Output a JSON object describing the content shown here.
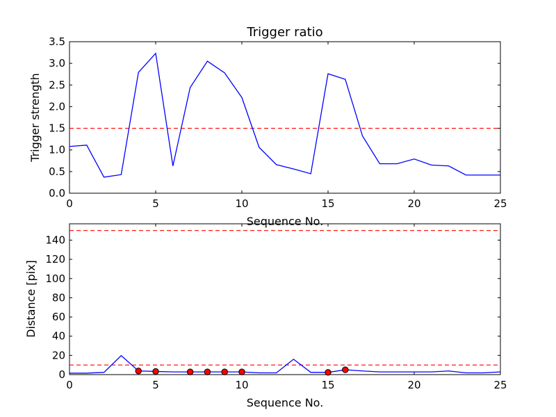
{
  "chart_data": [
    {
      "type": "line",
      "title": "Trigger ratio",
      "xlabel": "Sequence No.",
      "ylabel": "Trigger strength",
      "xlim": [
        0,
        25
      ],
      "ylim": [
        0,
        3.5
      ],
      "xticks": [
        "0",
        "5",
        "10",
        "15",
        "20",
        "25"
      ],
      "yticks": [
        "0.0",
        "0.5",
        "1.0",
        "1.5",
        "2.0",
        "2.5",
        "3.0",
        "3.5"
      ],
      "grid": false,
      "series": [
        {
          "color": "#0000ff",
          "x": [
            0,
            1,
            2,
            3,
            4,
            5,
            6,
            7,
            8,
            9,
            10,
            11,
            12,
            13,
            14,
            15,
            16,
            17,
            18,
            19,
            20,
            21,
            22,
            23,
            24,
            25
          ],
          "values": [
            1.08,
            1.11,
            0.37,
            0.43,
            2.79,
            3.23,
            0.63,
            2.44,
            3.05,
            2.78,
            2.21,
            1.06,
            0.66,
            0.56,
            0.45,
            2.76,
            2.63,
            1.32,
            0.68,
            0.68,
            0.79,
            0.65,
            0.63,
            0.42,
            0.42,
            0.42
          ]
        }
      ],
      "threshold_lines": [
        {
          "y": 1.5,
          "color": "#ff0000",
          "style": "dashed"
        }
      ]
    },
    {
      "type": "line",
      "title": "",
      "xlabel": "Sequence No.",
      "ylabel": "Distance [pix]",
      "xlim": [
        0,
        25
      ],
      "ylim": [
        0,
        157
      ],
      "xticks": [
        "0",
        "5",
        "10",
        "15",
        "20",
        "25"
      ],
      "yticks": [
        "0",
        "20",
        "40",
        "60",
        "80",
        "100",
        "120",
        "140"
      ],
      "grid": false,
      "series": [
        {
          "color": "#0000ff",
          "x": [
            0,
            1,
            2,
            3,
            4,
            5,
            6,
            7,
            8,
            9,
            10,
            11,
            12,
            13,
            14,
            15,
            16,
            17,
            18,
            19,
            20,
            21,
            22,
            23,
            24,
            25
          ],
          "values": [
            1.5,
            1.5,
            2.3,
            19.8,
            3.8,
            3.3,
            2.8,
            2.8,
            2.8,
            2.8,
            2.8,
            1.8,
            1.8,
            16.0,
            2.3,
            2.3,
            5.0,
            3.8,
            2.8,
            2.8,
            2.8,
            2.8,
            3.8,
            1.8,
            1.8,
            2.8
          ]
        }
      ],
      "markers": {
        "color": "#ff0000",
        "x": [
          4,
          5,
          7,
          8,
          9,
          10,
          15,
          16
        ],
        "values": [
          3.8,
          3.3,
          2.8,
          2.8,
          2.8,
          2.8,
          2.3,
          5.0
        ]
      },
      "threshold_lines": [
        {
          "y": 10,
          "color": "#ff0000",
          "style": "dashed"
        },
        {
          "y": 150,
          "color": "#ff0000",
          "style": "dashed"
        }
      ]
    }
  ]
}
